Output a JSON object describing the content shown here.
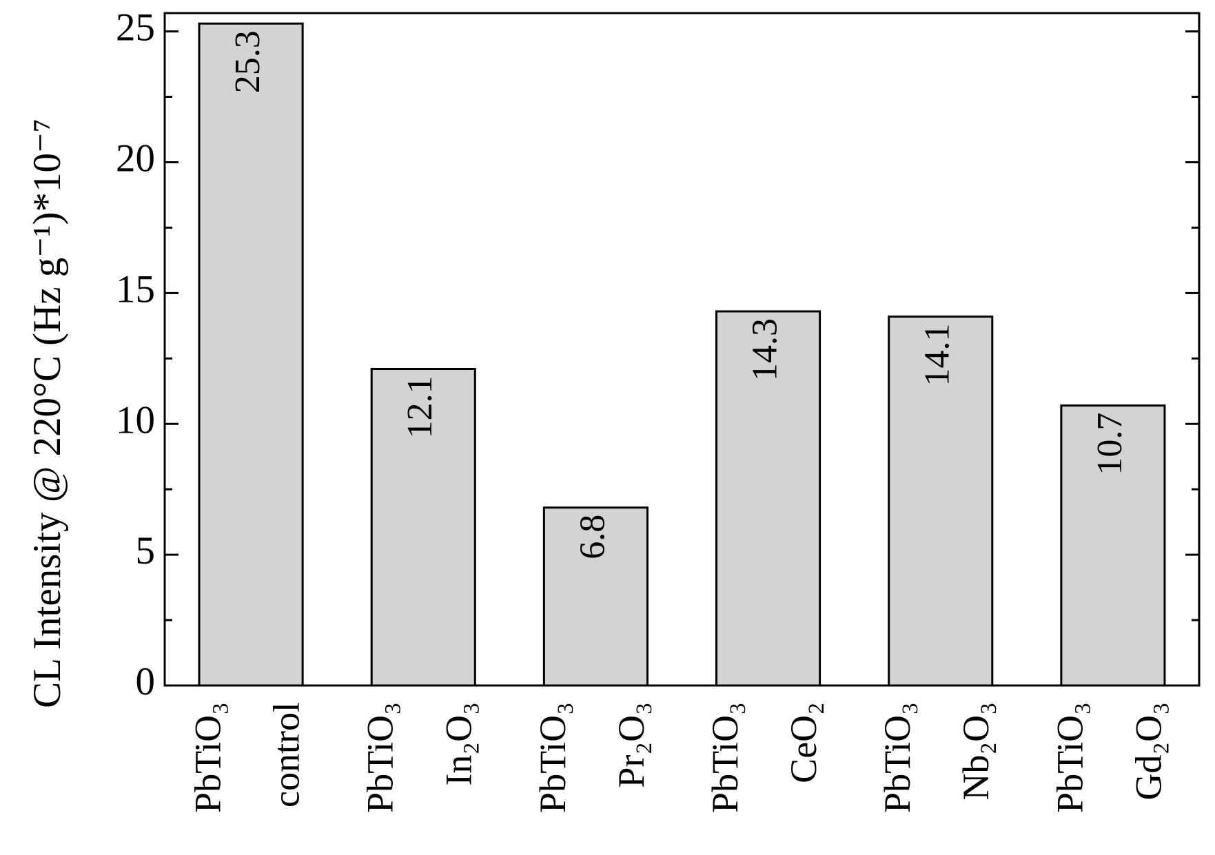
{
  "chart_data": {
    "type": "bar",
    "y_label": "CL Intensity @ 220°C (Hz g⁻¹)*10⁻⁷",
    "categories": [
      [
        "PbTiO₃",
        "control"
      ],
      [
        "PbTiO₃",
        "In₂O₃"
      ],
      [
        "PbTiO₃",
        "Pr₂O₃"
      ],
      [
        "PbTiO₃",
        "CeO₂"
      ],
      [
        "PbTiO₃",
        "Nb₂O₃"
      ],
      [
        "PbTiO₃",
        "Gd₂O₃"
      ]
    ],
    "values": [
      25.3,
      12.1,
      6.8,
      14.3,
      14.1,
      10.7
    ],
    "color": "#d3d3d3",
    "ylim": [
      0,
      25.7
    ],
    "yticks": [
      0,
      5,
      10,
      15,
      20,
      25
    ],
    "minor_yticks": [
      2.5,
      7.5,
      12.5,
      17.5,
      22.5
    ],
    "grid": false
  }
}
